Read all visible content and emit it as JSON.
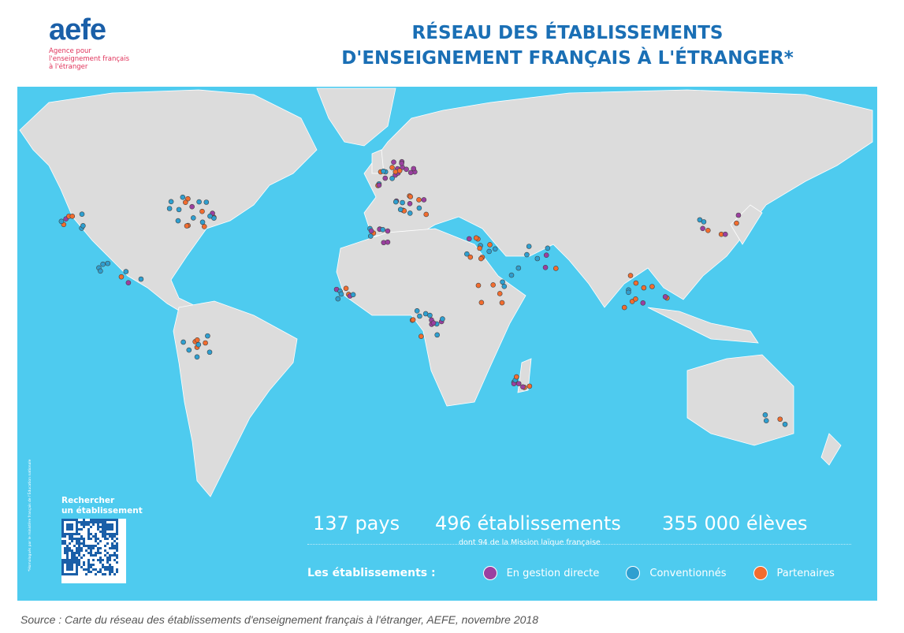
{
  "logo": {
    "word": "aefe",
    "line1": "Agence pour",
    "line2": "l'enseignement français",
    "line3": "à l'étranger"
  },
  "title": {
    "line1": "RÉSEAU DES ÉTABLISSEMENTS",
    "line2": "D'ENSEIGNEMENT FRANÇAIS À L'ÉTRANGER*"
  },
  "stats": {
    "countries": "137 pays",
    "schools": "496 établissements",
    "schools_sub": "dont 94 de la Mission laïque française",
    "students": "355 000 élèves"
  },
  "legend": {
    "title": "Les établissements :",
    "items": [
      {
        "label": "En gestion directe",
        "color": "#9b3fa0"
      },
      {
        "label": "Conventionnés",
        "color": "#2e9fd0"
      },
      {
        "label": "Partenaires",
        "color": "#f26c2e"
      }
    ]
  },
  "qr": {
    "label1": "Rechercher",
    "label2": "un établissement"
  },
  "footnote": "*Homologués par le ministère français de l'Éducation nationale",
  "source": "Source : Carte du réseau des établissements d'enseignement français à l'étranger, AEFE, novembre 2018",
  "colors": {
    "ocean": "#4ecbef",
    "land": "#dcdcdc",
    "brand": "#1a5fa8"
  }
}
